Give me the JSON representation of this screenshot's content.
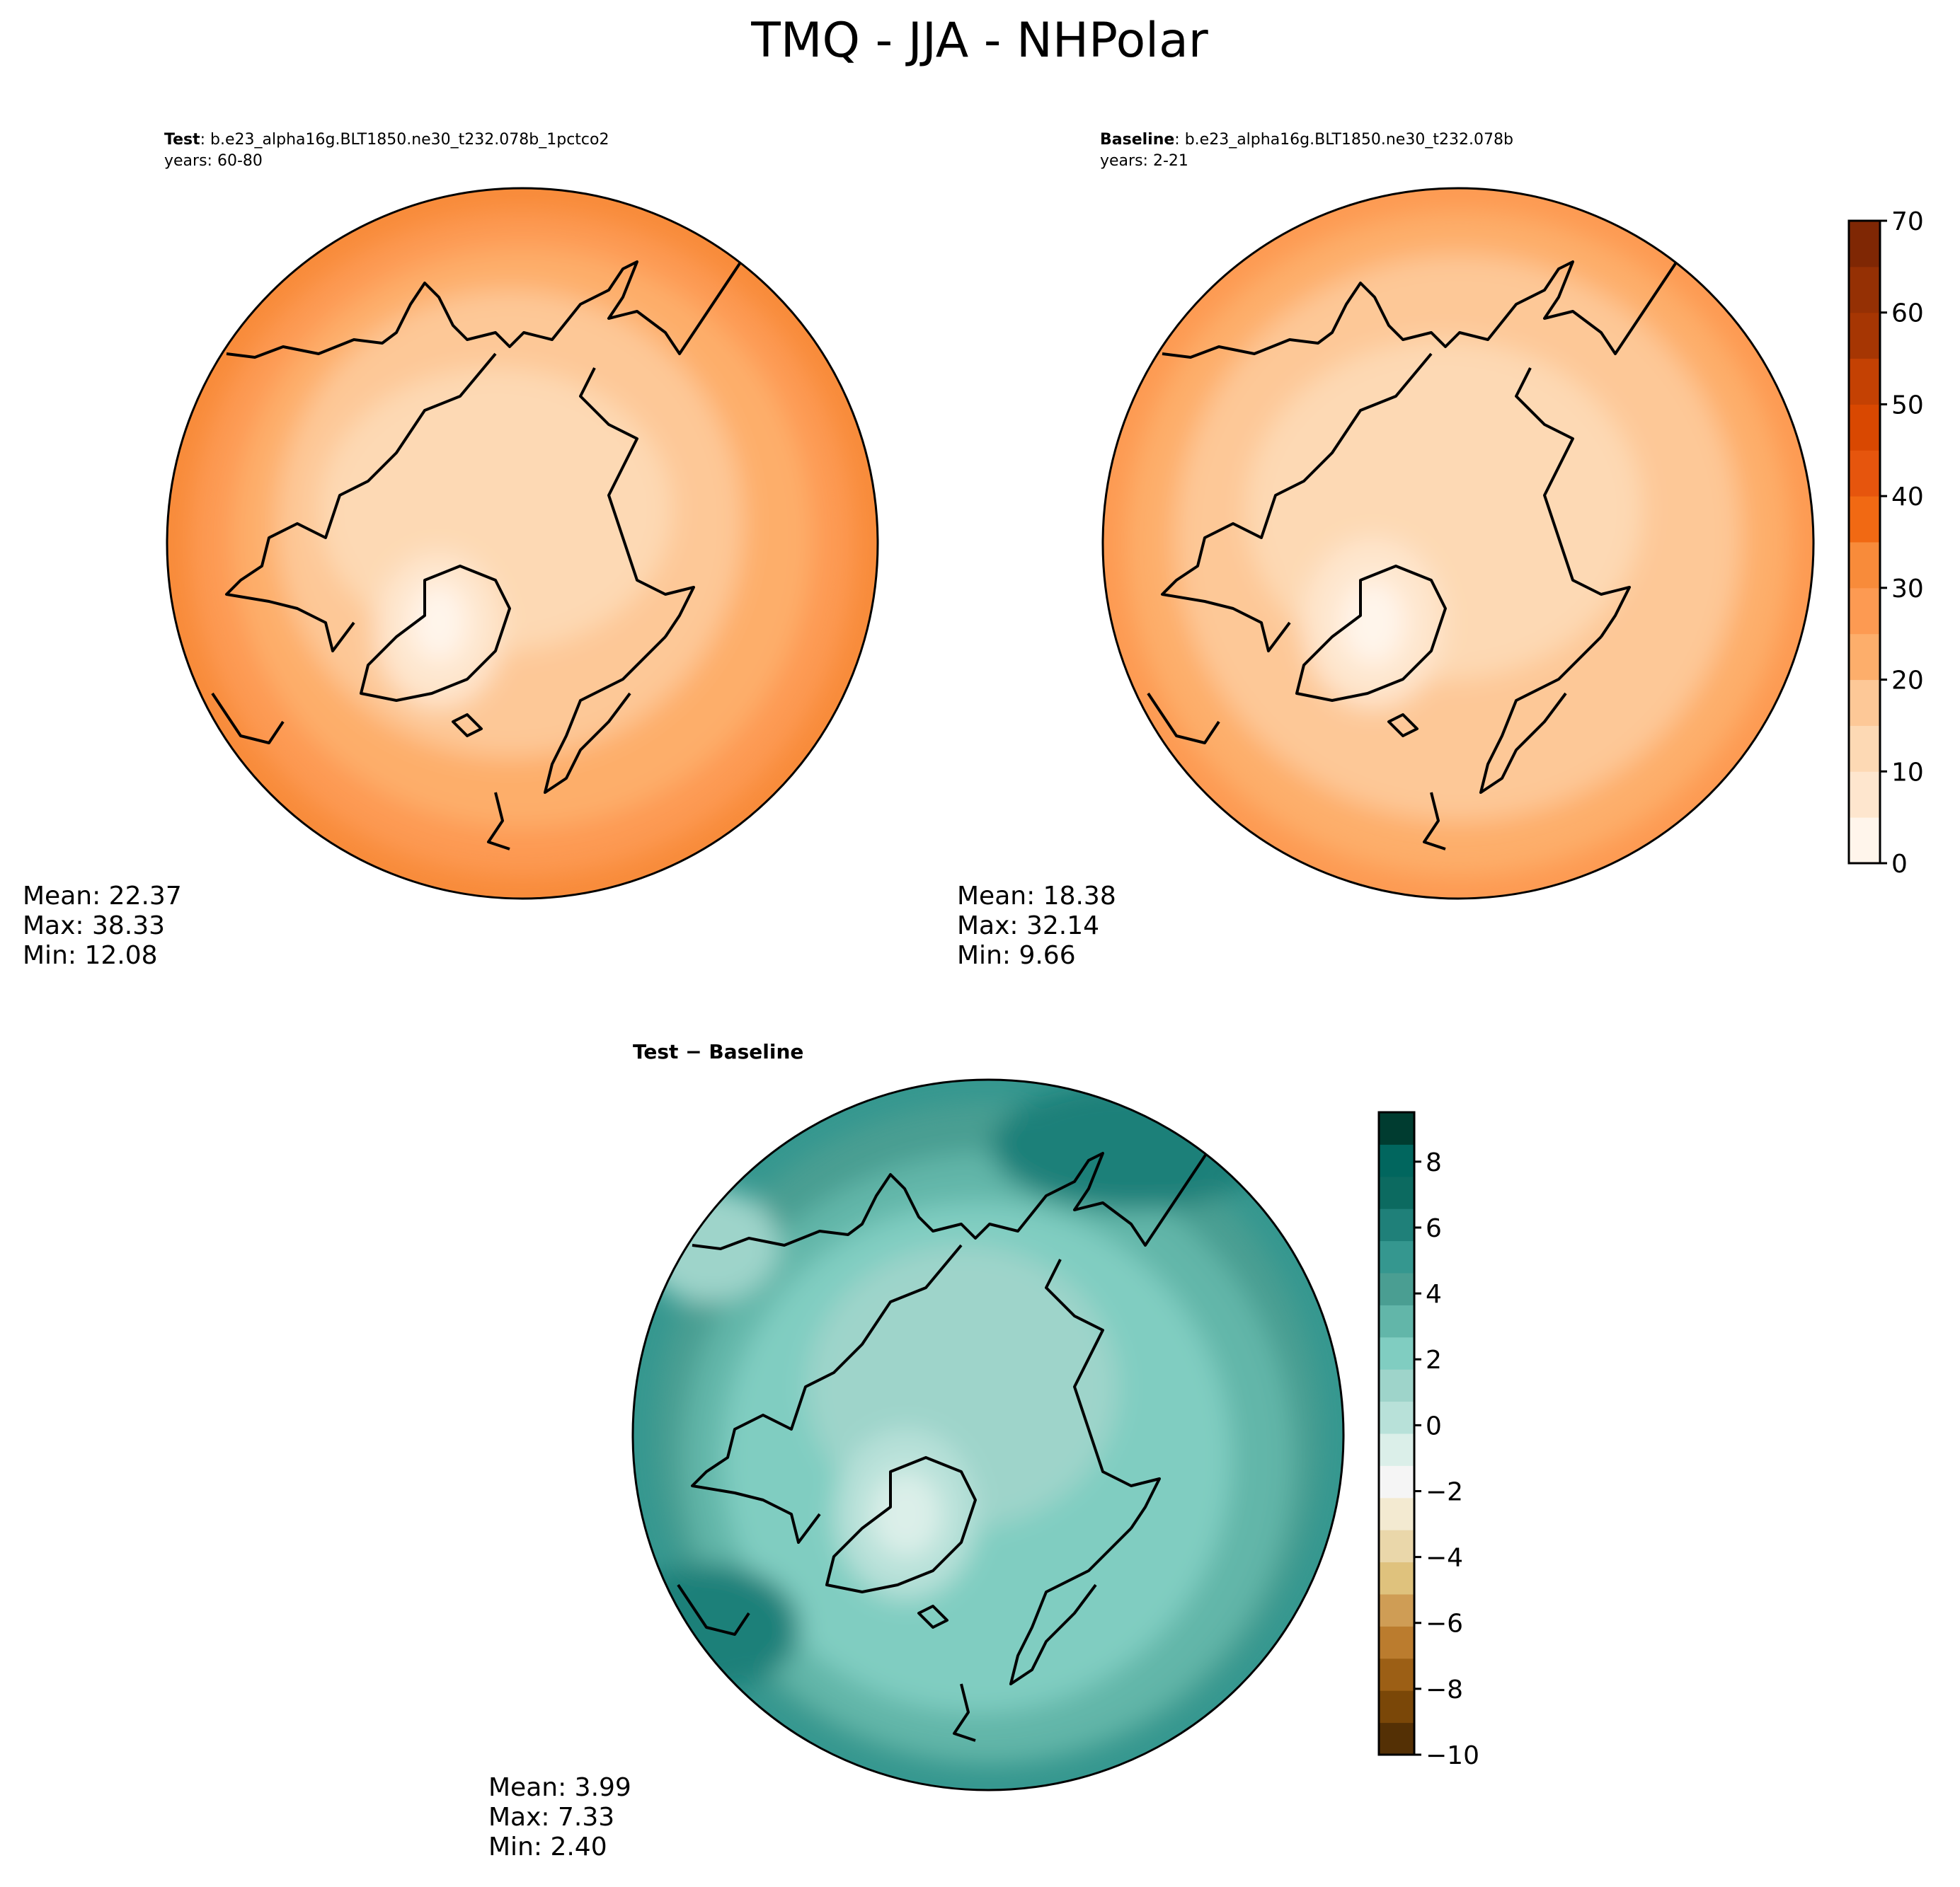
{
  "figure": {
    "title": "TMQ - JJA - NHPolar"
  },
  "panels": [
    {
      "id": "test",
      "title_bold": "Test",
      "title_rest": ": b.e23_alpha16g.BLT1850.ne30_t232.078b_1pctco2",
      "years": "years: 60-80",
      "stats": {
        "mean": "Mean: 22.37",
        "max": "Max: 38.33",
        "min": "Min: 12.08"
      }
    },
    {
      "id": "baseline",
      "title_bold": "Baseline",
      "title_rest": ": b.e23_alpha16g.BLT1850.ne30_t232.078b",
      "years": "years: 2-21",
      "stats": {
        "mean": "Mean: 18.38",
        "max": "Max: 32.14",
        "min": "Min:  9.66"
      }
    },
    {
      "id": "diff",
      "title_bold": "Test − Baseline",
      "stats": {
        "mean": "Mean:  3.99",
        "max": "Max:  7.33",
        "min": "Min:  2.40"
      }
    }
  ],
  "colorbars": {
    "absolute": {
      "ticks": [
        "0",
        "10",
        "20",
        "30",
        "40",
        "50",
        "60",
        "70"
      ],
      "values": [
        0,
        10,
        20,
        30,
        40,
        50,
        60,
        70
      ],
      "range": [
        0,
        70
      ],
      "levels": 14,
      "colors": [
        "#fff5eb",
        "#fee6ce",
        "#fdd9b4",
        "#fdc897",
        "#fdae6b",
        "#fd9a52",
        "#f88b3a",
        "#f16913",
        "#e6550d",
        "#d94801",
        "#c44103",
        "#a63603",
        "#953004",
        "#7f2704"
      ]
    },
    "difference": {
      "ticks": [
        "8",
        "6",
        "4",
        "2",
        "0",
        "−2",
        "−4",
        "−6",
        "−8",
        "−10"
      ],
      "values": [
        8,
        6,
        4,
        2,
        0,
        -2,
        -4,
        -6,
        -8,
        -10
      ],
      "range": [
        -10,
        9.5
      ],
      "colors_low_to_high": [
        "#543005",
        "#7a4708",
        "#9c5f15",
        "#bb7c2e",
        "#cf9d55",
        "#dfc27d",
        "#ead7aa",
        "#f3ead1",
        "#f5f5f5",
        "#dbefe9",
        "#b8e1d9",
        "#9ed4ca",
        "#80cdc1",
        "#62b6a9",
        "#4a9e92",
        "#35978f",
        "#1f8079",
        "#0c6a60",
        "#01665e",
        "#003c30"
      ]
    }
  },
  "chart_data": [
    {
      "type": "heatmap",
      "title": "Test : b.e23_alpha16g.BLT1850.ne30_t232.078b_1pctco2",
      "subtitle": "years: 60-80",
      "projection": "north-polar-stereographic",
      "colorbar_range": [
        0,
        70
      ],
      "stats": {
        "mean": 22.37,
        "max": 38.33,
        "min": 12.08
      },
      "palette": [
        "#fff5eb",
        "#fee6ce",
        "#fdd9b4",
        "#fdc897",
        "#fdae6b",
        "#fd9a52",
        "#f88b3a"
      ]
    },
    {
      "type": "heatmap",
      "title": "Baseline : b.e23_alpha16g.BLT1850.ne30_t232.078b",
      "subtitle": "years: 2-21",
      "projection": "north-polar-stereographic",
      "colorbar_range": [
        0,
        70
      ],
      "stats": {
        "mean": 18.38,
        "max": 32.14,
        "min": 9.66
      },
      "palette": [
        "#fff5eb",
        "#fee6ce",
        "#fdd9b4",
        "#fdc897",
        "#fdae6b",
        "#fd9a52"
      ]
    },
    {
      "type": "heatmap",
      "title": "Test − Baseline",
      "projection": "north-polar-stereographic",
      "colorbar_range": [
        -10,
        9.5
      ],
      "stats": {
        "mean": 3.99,
        "max": 7.33,
        "min": 2.4
      },
      "palette": [
        "#dbefe9",
        "#b8e1d9",
        "#9ed4ca",
        "#80cdc1",
        "#62b6a9",
        "#4a9e92",
        "#35978f",
        "#1f8079"
      ]
    }
  ]
}
